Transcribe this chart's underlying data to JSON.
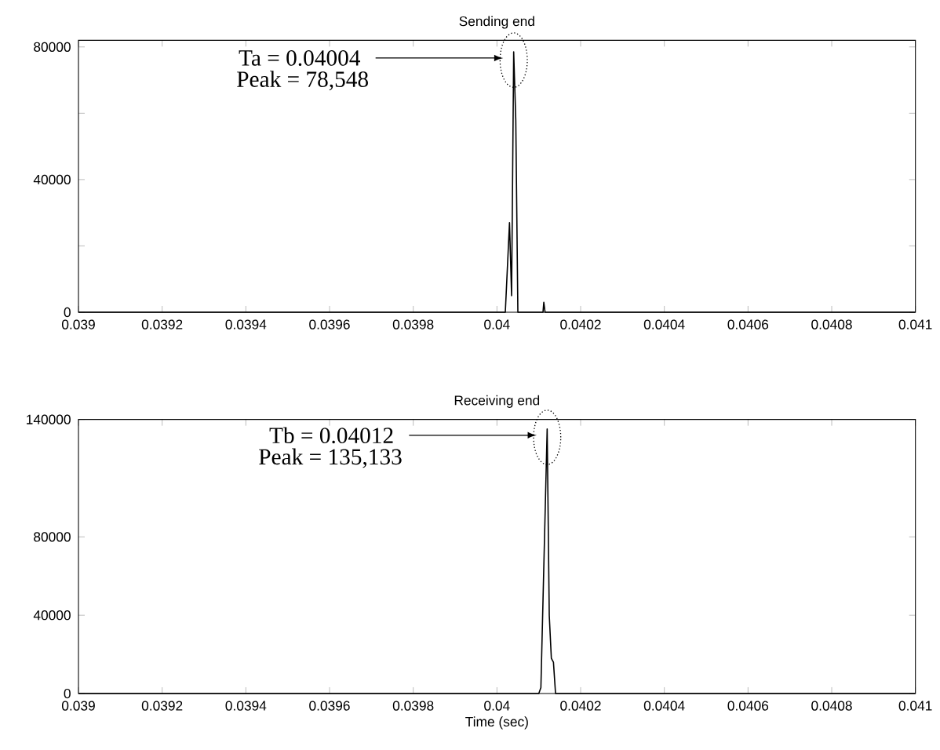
{
  "chart_data": [
    {
      "type": "line",
      "title": "Sending end",
      "x": [
        0.039,
        0.04002,
        0.04003,
        0.040035,
        0.04004,
        0.040045,
        0.04005,
        0.04011,
        0.040112,
        0.040115,
        0.041
      ],
      "series": [
        {
          "color": "#000000",
          "values": [
            0,
            0,
            27000,
            5000,
            78548,
            58000,
            0,
            0,
            3000,
            0,
            0
          ]
        }
      ],
      "xlim": [
        0.039,
        0.041
      ],
      "xticks": [
        0.039,
        0.0392,
        0.0394,
        0.0396,
        0.0398,
        0.04,
        0.0402,
        0.0404,
        0.0406,
        0.0408,
        0.041
      ],
      "ylim": [
        0,
        82000
      ],
      "yticks": [
        0,
        {
          "value": 20000,
          "label": null
        },
        40000,
        {
          "value": 60000,
          "label": null
        },
        80000
      ],
      "annotations": [
        "Ta = 0.04004",
        "Peak = 78,548"
      ]
    },
    {
      "type": "line",
      "title": "Receiving end",
      "xlabel": "Time (sec)",
      "x": [
        0.039,
        0.0401,
        0.040105,
        0.04012,
        0.040125,
        0.04013,
        0.040135,
        0.04014,
        0.041
      ],
      "series": [
        {
          "color": "#000000",
          "values": [
            0,
            0,
            3000,
            135133,
            40000,
            18000,
            16000,
            0,
            0
          ]
        }
      ],
      "xlim": [
        0.039,
        0.041
      ],
      "xticks": [
        0.039,
        0.0392,
        0.0394,
        0.0396,
        0.0398,
        0.04,
        0.0402,
        0.0404,
        0.0406,
        0.0408,
        0.041
      ],
      "ylim": [
        0,
        140000
      ],
      "yticks": [
        0,
        40000,
        80000,
        140000
      ],
      "annotations": [
        "Tb = 0.04012",
        "Peak = 135,133"
      ]
    }
  ]
}
